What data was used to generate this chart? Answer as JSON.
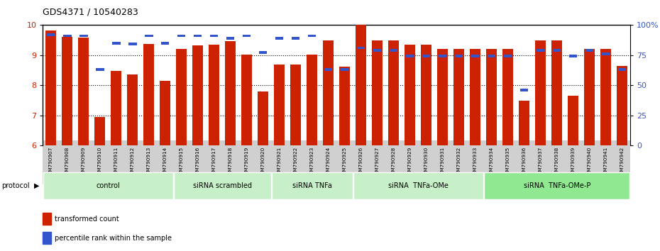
{
  "title": "GDS4371 / 10540283",
  "samples": [
    "GSM790907",
    "GSM790908",
    "GSM790909",
    "GSM790910",
    "GSM790911",
    "GSM790912",
    "GSM790913",
    "GSM790914",
    "GSM790915",
    "GSM790916",
    "GSM790917",
    "GSM790918",
    "GSM790919",
    "GSM790920",
    "GSM790921",
    "GSM790922",
    "GSM790923",
    "GSM790924",
    "GSM790925",
    "GSM790926",
    "GSM790927",
    "GSM790928",
    "GSM790929",
    "GSM790930",
    "GSM790931",
    "GSM790932",
    "GSM790933",
    "GSM790934",
    "GSM790935",
    "GSM790936",
    "GSM790937",
    "GSM790938",
    "GSM790939",
    "GSM790940",
    "GSM790941",
    "GSM790942"
  ],
  "red_values": [
    9.82,
    9.62,
    9.58,
    6.95,
    8.48,
    8.36,
    9.38,
    8.15,
    9.2,
    9.33,
    9.35,
    9.47,
    9.02,
    7.8,
    8.7,
    8.68,
    9.02,
    9.5,
    8.62,
    10.0,
    9.48,
    9.48,
    9.35,
    9.35,
    9.2,
    9.2,
    9.2,
    9.2,
    9.2,
    7.48,
    9.48,
    9.48,
    7.65,
    9.2,
    9.2,
    8.65
  ],
  "percentile_values": [
    91,
    90,
    90,
    62,
    84,
    83,
    90,
    84,
    90,
    90,
    90,
    88,
    90,
    76,
    88,
    88,
    90,
    62,
    62,
    80,
    78,
    78,
    73,
    73,
    73,
    73,
    73,
    73,
    73,
    45,
    78,
    78,
    73,
    78,
    75,
    62
  ],
  "groups": [
    {
      "label": "control",
      "start": 0,
      "end": 8,
      "color": "#c8f0c8"
    },
    {
      "label": "siRNA scrambled",
      "start": 8,
      "end": 14,
      "color": "#c8f0c8"
    },
    {
      "label": "siRNA TNFa",
      "start": 14,
      "end": 19,
      "color": "#c8f0c8"
    },
    {
      "label": "siRNA  TNFa-OMe",
      "start": 19,
      "end": 27,
      "color": "#c8f0c8"
    },
    {
      "label": "siRNA  TNFa-OMe-P",
      "start": 27,
      "end": 36,
      "color": "#90e890"
    }
  ],
  "ylim_left": [
    6,
    10
  ],
  "ylim_right": [
    0,
    100
  ],
  "yticks_left": [
    6,
    7,
    8,
    9,
    10
  ],
  "yticks_right": [
    0,
    25,
    50,
    75,
    100
  ],
  "ytick_labels_right": [
    "0",
    "25",
    "50",
    "75",
    "100%"
  ],
  "bar_color_red": "#cc2200",
  "bar_color_blue": "#3355cc",
  "background_color": "#ffffff",
  "tick_label_color_left": "#cc2200",
  "tick_label_color_right": "#3355cc"
}
